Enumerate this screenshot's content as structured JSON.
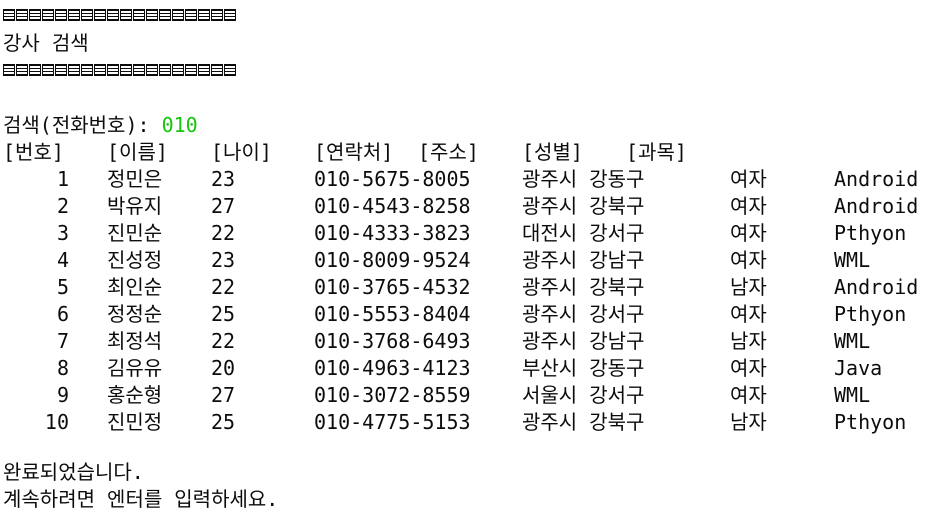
{
  "console": {
    "title": "강사 검색",
    "search_label": "검색(전화번호): ",
    "search_value": "010",
    "headers": [
      "[번호]",
      "[이름]",
      "[나이]",
      "[연락처]",
      "[주소]",
      "[성별]",
      "[과목]"
    ],
    "rows": [
      {
        "num": "1",
        "name": "정민은",
        "age": "23",
        "phone": "010-5675-8005",
        "addr": "광주시 강동구",
        "gender": "여자",
        "subject": "Android"
      },
      {
        "num": "2",
        "name": "박유지",
        "age": "27",
        "phone": "010-4543-8258",
        "addr": "광주시 강북구",
        "gender": "여자",
        "subject": "Android"
      },
      {
        "num": "3",
        "name": "진민순",
        "age": "22",
        "phone": "010-4333-3823",
        "addr": "대전시 강서구",
        "gender": "여자",
        "subject": "Pthyon"
      },
      {
        "num": "4",
        "name": "진성정",
        "age": "23",
        "phone": "010-8009-9524",
        "addr": "광주시 강남구",
        "gender": "여자",
        "subject": "WML"
      },
      {
        "num": "5",
        "name": "최인순",
        "age": "22",
        "phone": "010-3765-4532",
        "addr": "광주시 강북구",
        "gender": "남자",
        "subject": "Android"
      },
      {
        "num": "6",
        "name": "정정순",
        "age": "25",
        "phone": "010-5553-8404",
        "addr": "광주시 강서구",
        "gender": "여자",
        "subject": "Pthyon"
      },
      {
        "num": "7",
        "name": "최정석",
        "age": "22",
        "phone": "010-3768-6493",
        "addr": "광주시 강남구",
        "gender": "남자",
        "subject": "WML"
      },
      {
        "num": "8",
        "name": "김유유",
        "age": "20",
        "phone": "010-4963-4123",
        "addr": "부산시 강동구",
        "gender": "여자",
        "subject": "Java"
      },
      {
        "num": "9",
        "name": "홍순형",
        "age": "27",
        "phone": "010-3072-8559",
        "addr": "서울시 강서구",
        "gender": "여자",
        "subject": "WML"
      },
      {
        "num": "10",
        "name": "진민정",
        "age": "25",
        "phone": "010-4775-5153",
        "addr": "광주시 강북구",
        "gender": "남자",
        "subject": "Pthyon"
      }
    ],
    "done_message": "완료되었습니다.",
    "continue_message": "계속하려면 엔터를 입력하세요."
  },
  "colors": {
    "background": "#ffffff",
    "text": "#0c0c0c",
    "input_value": "#16c60c"
  }
}
